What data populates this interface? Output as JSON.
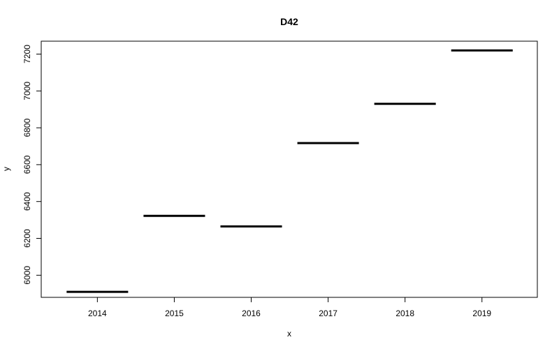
{
  "chart_data": {
    "type": "line",
    "title": "D42",
    "xlabel": "x",
    "ylabel": "y",
    "categories": [
      "2014",
      "2015",
      "2016",
      "2017",
      "2018",
      "2019"
    ],
    "values": [
      5910,
      6322,
      6265,
      6717,
      6930,
      7220
    ],
    "ylim": [
      5880,
      7270
    ],
    "yticks": [
      6000,
      6200,
      6400,
      6600,
      6800,
      7000,
      7200
    ],
    "yticks_labels": [
      "6000",
      "6200",
      "6400",
      "6600",
      "6800",
      "7000",
      "7200"
    ],
    "grid": false,
    "legend": "none",
    "mark_style": "horizontal segment per category",
    "line_color": "#000000"
  }
}
